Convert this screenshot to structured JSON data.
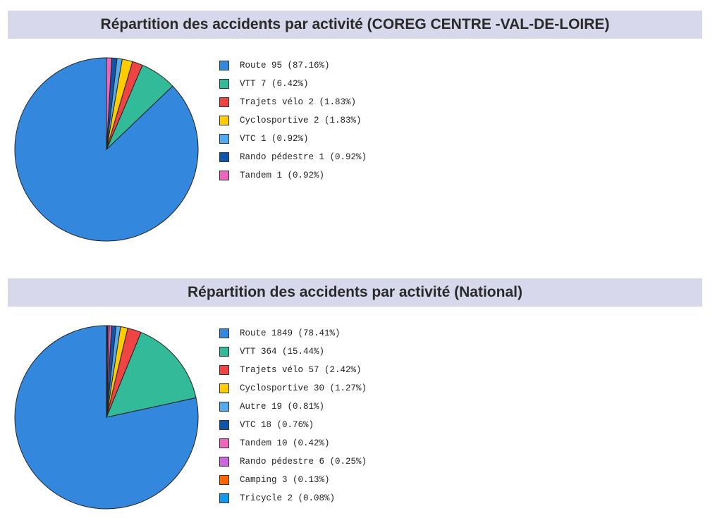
{
  "chart_data": [
    {
      "type": "pie",
      "title": "Répartition des accidents par activité (COREG CENTRE -VAL-DE-LOIRE)",
      "legend_position": "right",
      "categories": [
        "Route",
        "VTT",
        "Trajets vélo",
        "Cyclosportive",
        "VTC",
        "Rando pédestre",
        "Tandem"
      ],
      "values": [
        95,
        7,
        2,
        2,
        1,
        1,
        1
      ],
      "legend_labels": [
        "Route 95 (87.16%)",
        "VTT 7 (6.42%)",
        "Trajets vélo 2 (1.83%)",
        "Cyclosportive 2 (1.83%)",
        "VTC 1 (0.92%)",
        "Rando pédestre 1 (0.92%)",
        "Tandem 1 (0.92%)"
      ],
      "colors": [
        "#3388dd",
        "#33bb99",
        "#ee4444",
        "#ffcc00",
        "#55aaee",
        "#1155aa",
        "#ee66bb"
      ]
    },
    {
      "type": "pie",
      "title": "Répartition des accidents par activité (National)",
      "legend_position": "right",
      "categories": [
        "Route",
        "VTT",
        "Trajets vélo",
        "Cyclosportive",
        "Autre",
        "VTC",
        "Tandem",
        "Rando pédestre",
        "Camping",
        "Tricycle"
      ],
      "values": [
        1849,
        364,
        57,
        30,
        19,
        18,
        10,
        6,
        3,
        2
      ],
      "legend_labels": [
        "Route 1849 (78.41%)",
        "VTT 364 (15.44%)",
        "Trajets vélo 57 (2.42%)",
        "Cyclosportive 30 (1.27%)",
        "Autre 19 (0.81%)",
        "VTC 18 (0.76%)",
        "Tandem 10 (0.42%)",
        "Rando pédestre 6 (0.25%)",
        "Camping 3 (0.13%)",
        "Tricycle 2 (0.08%)"
      ],
      "colors": [
        "#3388dd",
        "#33bb99",
        "#ee4444",
        "#ffcc00",
        "#55aaee",
        "#1155aa",
        "#ee66bb",
        "#cc66dd",
        "#ff6600",
        "#1199ee"
      ]
    }
  ]
}
